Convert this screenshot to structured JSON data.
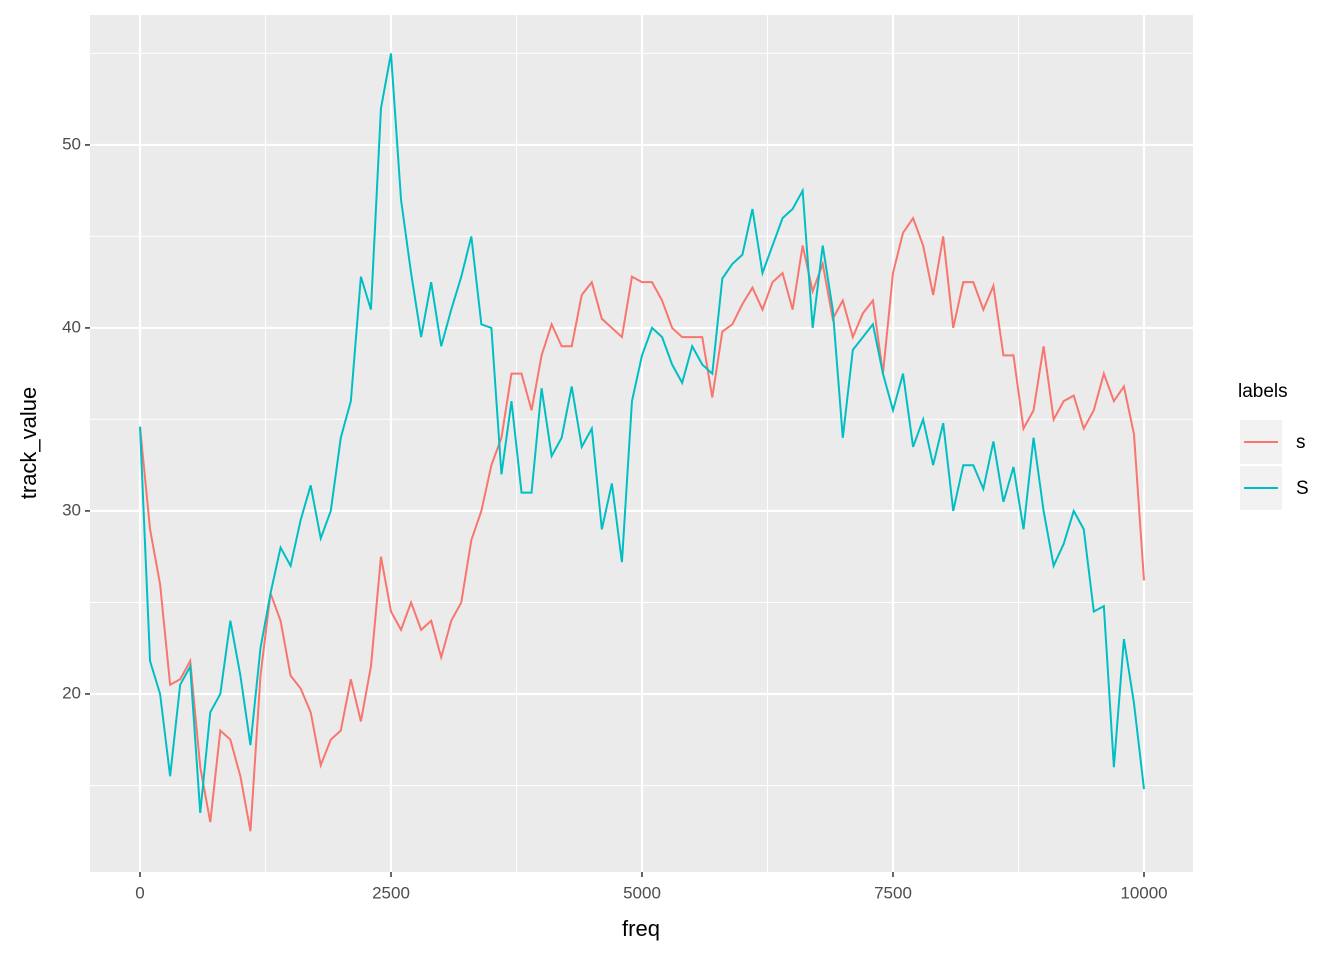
{
  "chart_data": {
    "type": "line",
    "x_label": "freq",
    "y_label": "track_value",
    "legend_title": "labels",
    "x": [
      0,
      100,
      200,
      300,
      400,
      500,
      600,
      700,
      800,
      900,
      1000,
      1100,
      1200,
      1300,
      1400,
      1500,
      1600,
      1700,
      1800,
      1900,
      2000,
      2100,
      2200,
      2300,
      2400,
      2500,
      2600,
      2700,
      2800,
      2900,
      3000,
      3100,
      3200,
      3300,
      3400,
      3500,
      3600,
      3700,
      3800,
      3900,
      4000,
      4100,
      4200,
      4300,
      4400,
      4500,
      4600,
      4700,
      4800,
      4900,
      5000,
      5100,
      5200,
      5300,
      5400,
      5500,
      5600,
      5700,
      5800,
      5900,
      6000,
      6100,
      6200,
      6300,
      6400,
      6500,
      6600,
      6700,
      6800,
      6900,
      7000,
      7100,
      7200,
      7300,
      7400,
      7500,
      7600,
      7700,
      7800,
      7900,
      8000,
      8100,
      8200,
      8300,
      8400,
      8500,
      8600,
      8700,
      8800,
      8900,
      9000,
      9100,
      9200,
      9300,
      9400,
      9500,
      9600,
      9700,
      9800,
      9900,
      10000
    ],
    "series": [
      {
        "name": "s",
        "color": "#F8766D",
        "values": [
          34.6,
          29,
          26,
          20.5,
          20.8,
          21.8,
          16,
          13,
          18,
          17.5,
          15.5,
          12.5,
          21,
          25.5,
          24,
          21,
          20.3,
          19,
          16.1,
          17.5,
          18,
          20.8,
          18.5,
          21.5,
          27.5,
          24.5,
          23.5,
          25,
          23.5,
          24,
          22,
          24,
          25,
          28.4,
          30,
          32.5,
          34,
          37.5,
          37.5,
          35.5,
          38.5,
          40.2,
          39,
          39,
          41.8,
          42.5,
          40.5,
          40,
          39.5,
          42.8,
          42.5,
          42.5,
          41.5,
          40,
          39.5,
          39.5,
          39.5,
          36.2,
          39.8,
          40.2,
          41.3,
          42.2,
          41,
          42.5,
          43,
          41,
          44.5,
          42,
          43.5,
          40.5,
          41.5,
          39.5,
          40.8,
          41.5,
          37.5,
          43,
          45.2,
          46,
          44.5,
          41.8,
          45,
          40,
          42.5,
          42.5,
          41,
          42.3,
          38.5,
          38.5,
          34.5,
          35.5,
          39,
          35,
          36,
          36.3,
          34.5,
          35.5,
          37.5,
          36,
          36.8,
          34.2,
          26.2
        ]
      },
      {
        "name": "S",
        "color": "#00BFC4",
        "values": [
          34.6,
          21.8,
          20,
          15.5,
          20.5,
          21.5,
          13.5,
          19,
          20,
          24,
          21,
          17.2,
          22.5,
          25.5,
          28,
          27,
          29.5,
          31.4,
          28.5,
          30,
          34,
          36,
          42.8,
          41,
          52,
          55,
          47,
          43,
          39.5,
          42.5,
          39,
          41,
          42.8,
          45,
          40.2,
          40,
          32,
          36,
          31,
          31,
          36.7,
          33,
          34,
          36.8,
          33.5,
          34.5,
          29,
          31.5,
          27.2,
          36,
          38.5,
          40,
          39.5,
          38,
          37,
          39,
          38,
          37.5,
          42.7,
          43.5,
          44,
          46.5,
          43,
          44.5,
          46,
          46.5,
          47.5,
          40,
          44.5,
          41,
          34,
          38.8,
          39.5,
          40.2,
          37.5,
          35.5,
          37.5,
          33.5,
          35,
          32.5,
          34.8,
          30,
          32.5,
          32.5,
          31.2,
          33.8,
          30.5,
          32.4,
          29,
          34,
          30,
          27,
          28.2,
          30,
          29,
          24.5,
          24.8,
          16,
          23,
          19.5,
          14.8
        ]
      }
    ],
    "xlim": [
      -498,
      10488
    ],
    "xticks": [
      0,
      2500,
      5000,
      7500,
      10000
    ],
    "ylim": [
      10.27,
      57.1
    ],
    "yticks": [
      20,
      30,
      40,
      50
    ],
    "grid": true,
    "legend": "right"
  }
}
